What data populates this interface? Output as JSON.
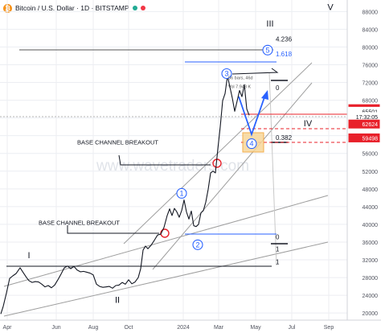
{
  "header": {
    "symbol_title": "Bitcoin / U.S. Dollar · 1D · BITSTAMP",
    "logo_glyph": "₿",
    "status_color": "#22ab94",
    "alert_color": "#f23645"
  },
  "watermark": "www.wavetraders.com",
  "colors": {
    "price": "#131722",
    "blue": "#2962ff",
    "red": "#e8202a",
    "channel": "#9e9e9e",
    "box_fill": "#f7d79a",
    "box_stroke": "#f0a030",
    "grid": "#eceef2"
  },
  "chart_data": {
    "type": "line",
    "title": "",
    "xlabel": "",
    "ylabel": "",
    "x_ticks": [
      "Apr",
      "Jun",
      "Aug",
      "Oct",
      "2024",
      "Mar",
      "May",
      "Jul",
      "Sep"
    ],
    "y_ticks": [
      "20000",
      "24000",
      "28000",
      "32000",
      "36000",
      "40000",
      "44000",
      "48000",
      "52000",
      "56000",
      "60000",
      "64000",
      "68000",
      "72000",
      "76000",
      "80000",
      "84000",
      "88000"
    ],
    "y_scale": "linear",
    "xlim": [
      0,
      398
    ],
    "ylim": [
      18400,
      90600
    ],
    "x_tick_pos": [
      9,
      70,
      116,
      160,
      228,
      272,
      318,
      363,
      409
    ],
    "series": [
      {
        "values": [
          [
            1,
            19800
          ],
          [
            4,
            21500
          ],
          [
            8,
            24500
          ],
          [
            12,
            27800
          ],
          [
            16,
            28400
          ],
          [
            20,
            28900
          ],
          [
            25,
            30200
          ],
          [
            29,
            29100
          ],
          [
            33,
            28000
          ],
          [
            36,
            27300
          ],
          [
            40,
            26900
          ],
          [
            44,
            27100
          ],
          [
            48,
            27000
          ],
          [
            52,
            26500
          ],
          [
            56,
            25900
          ],
          [
            60,
            26200
          ],
          [
            64,
            25700
          ],
          [
            68,
            26300
          ],
          [
            72,
            27500
          ],
          [
            76,
            28800
          ],
          [
            80,
            30200
          ],
          [
            84,
            30600
          ],
          [
            88,
            30000
          ],
          [
            92,
            30500
          ],
          [
            96,
            29700
          ],
          [
            100,
            29300
          ],
          [
            104,
            29400
          ],
          [
            108,
            29200
          ],
          [
            112,
            29000
          ],
          [
            116,
            28600
          ],
          [
            120,
            26500
          ],
          [
            124,
            26000
          ],
          [
            128,
            25800
          ],
          [
            132,
            25900
          ],
          [
            136,
            26000
          ],
          [
            140,
            25600
          ],
          [
            144,
            26200
          ],
          [
            148,
            26300
          ],
          [
            152,
            26900
          ],
          [
            156,
            26500
          ],
          [
            160,
            27500
          ],
          [
            164,
            26600
          ],
          [
            168,
            27000
          ],
          [
            172,
            28000
          ],
          [
            175,
            30000
          ],
          [
            178,
            34200
          ],
          [
            181,
            35100
          ],
          [
            184,
            34500
          ],
          [
            188,
            35300
          ],
          [
            192,
            36400
          ],
          [
            196,
            37600
          ],
          [
            200,
            37800
          ],
          [
            204,
            39300
          ],
          [
            208,
            42000
          ],
          [
            211,
            43500
          ],
          [
            214,
            42000
          ],
          [
            217,
            43600
          ],
          [
            220,
            42800
          ],
          [
            223,
            41600
          ],
          [
            226,
            43100
          ],
          [
            229,
            45500
          ],
          [
            232,
            42800
          ],
          [
            235,
            41200
          ],
          [
            238,
            43000
          ],
          [
            241,
            39700
          ],
          [
            244,
            39500
          ],
          [
            247,
            40000
          ],
          [
            250,
            42600
          ],
          [
            253,
            43100
          ],
          [
            256,
            45000
          ],
          [
            259,
            47900
          ],
          [
            262,
            51600
          ],
          [
            265,
            52000
          ],
          [
            268,
            51600
          ],
          [
            271,
            57000
          ],
          [
            274,
            62000
          ],
          [
            277,
            67900
          ],
          [
            280,
            69500
          ],
          [
            283,
            73500
          ],
          [
            286,
            71000
          ],
          [
            289,
            68500
          ],
          [
            292,
            65500
          ],
          [
            295,
            67800
          ],
          [
            298,
            70200
          ],
          [
            301,
            68800
          ],
          [
            304,
            71500
          ],
          [
            307,
            66000
          ],
          [
            310,
            64600
          ]
        ]
      }
    ],
    "price_tags": [
      {
        "label": "66081",
        "value": 66081,
        "color": "#e8202a",
        "text_color": "#ffffff"
      },
      {
        "label": "65501",
        "value": 65501,
        "color": "#ffffff",
        "text_color": "#131722"
      },
      {
        "label": "17:32:05",
        "value": 64300,
        "color": "#ffffff",
        "text_color": "#131722"
      },
      {
        "label": "62624",
        "value": 62624,
        "color": "#e8202a",
        "text_color": "#ffffff"
      },
      {
        "label": "59498",
        "value": 59498,
        "color": "#e8202a",
        "text_color": "#ffffff"
      }
    ],
    "fib_labels": [
      {
        "label": "4.236",
        "y": 81300
      },
      {
        "label": "1.618",
        "y": 77900
      },
      {
        "label": "0",
        "y": 70300
      },
      {
        "label": "0.382",
        "y": 59000
      },
      {
        "label": "0",
        "y": 36600
      },
      {
        "label": "1",
        "y": 33900
      },
      {
        "label": "1",
        "y": 31000
      }
    ],
    "wave_labels": [
      {
        "label": "I",
        "x": 36,
        "y": 32400
      },
      {
        "label": "II",
        "x": 146,
        "y": 22300
      },
      {
        "label": "III",
        "x": 336,
        "y": 84600
      },
      {
        "label": "IV",
        "x": 383,
        "y": 62100
      },
      {
        "label": "V",
        "x": 411,
        "y": 88300
      },
      {
        "label": "1",
        "x": 226,
        "y": 47000
      },
      {
        "label": "2",
        "x": 246,
        "y": 35400
      },
      {
        "label": "3",
        "x": 282,
        "y": 74000
      },
      {
        "label": "4",
        "x": 313,
        "y": 58200
      },
      {
        "label": "5",
        "x": 333,
        "y": 79300
      }
    ],
    "annotations": [
      {
        "label": "BASE CHANNEL BREAKOUT",
        "x": 96,
        "y": 58000
      },
      {
        "label": "BASE CHANNEL BREAKOUT",
        "x": 48,
        "y": 39900
      },
      {
        "label": "56 bars, 46d",
        "x": 284,
        "y": 72700
      },
      {
        "label": "Vol 7.943 K",
        "x": 284,
        "y": 70700
      }
    ]
  }
}
